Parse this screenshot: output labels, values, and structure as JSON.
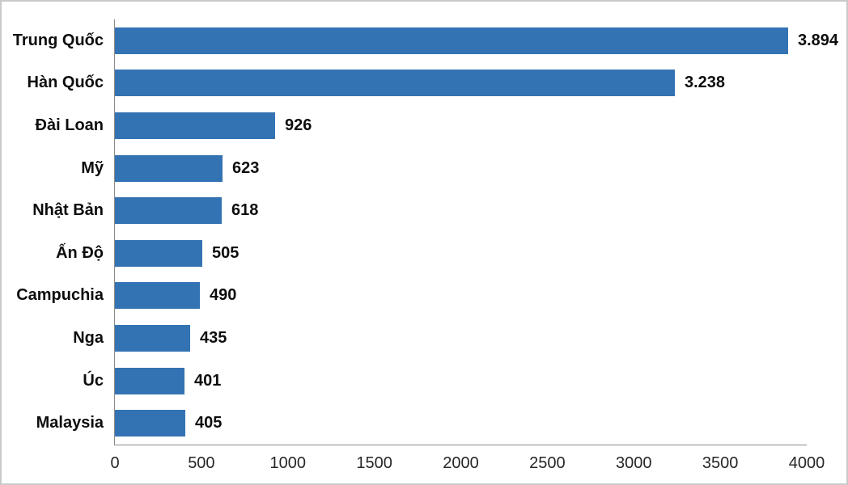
{
  "chart_data": {
    "type": "bar",
    "orientation": "horizontal",
    "title": "",
    "xlabel": "",
    "ylabel": "",
    "categories": [
      "Trung Quốc",
      "Hàn Quốc",
      "Đài Loan",
      "Mỹ",
      "Nhật Bản",
      "Ấn Độ",
      "Campuchia",
      "Nga",
      "Úc",
      "Malaysia"
    ],
    "values": [
      3894,
      3238,
      926,
      623,
      618,
      505,
      490,
      435,
      401,
      405
    ],
    "value_labels": [
      "3.894",
      "3.238",
      "926",
      "623",
      "618",
      "505",
      "490",
      "435",
      "401",
      "405"
    ],
    "xlim": [
      0,
      4000
    ],
    "xticks": [
      0,
      500,
      1000,
      1500,
      2000,
      2500,
      3000,
      3500,
      4000
    ],
    "xtick_labels": [
      "0",
      "500",
      "1000",
      "1500",
      "2000",
      "2500",
      "3000",
      "3500",
      "4000"
    ],
    "grid": false,
    "legend": null,
    "colors": {
      "bar": "#3473b3",
      "axis_line": "#8a8a8a",
      "label_text": "#0d0d0d",
      "tick_text": "#262626",
      "background": "#ffffff",
      "border": "#c9c9c9"
    }
  }
}
